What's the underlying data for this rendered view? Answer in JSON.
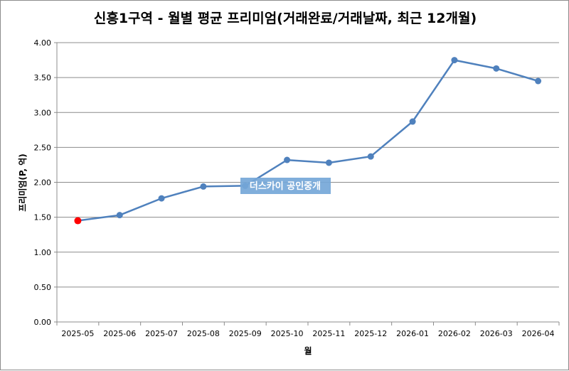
{
  "chart_data": {
    "type": "line",
    "title": "신흥1구역 - 월별 평균 프리미엄(거래완료/거래날짜, 최근 12개월)",
    "xlabel": "월",
    "ylabel": "프리미엄(P, 억)",
    "categories": [
      "2025-05",
      "2025-06",
      "2025-07",
      "2025-08",
      "2025-09",
      "2025-10",
      "2025-11",
      "2025-12",
      "2026-01",
      "2026-02",
      "2026-03",
      "2026-04"
    ],
    "series": [
      {
        "values": [
          1.45,
          1.53,
          1.77,
          1.94,
          1.95,
          2.32,
          2.28,
          2.37,
          2.87,
          3.75,
          3.63,
          3.45
        ]
      }
    ],
    "ylim": [
      0,
      4
    ],
    "yticks": [
      "0.00",
      "0.50",
      "1.00",
      "1.50",
      "2.00",
      "2.50",
      "3.00",
      "3.50",
      "4.00"
    ],
    "grid": true,
    "colors": {
      "line": "#4f81bd",
      "highlight_point": "#ff0000",
      "grid": "#8c8c8c"
    },
    "highlighted_index": 0
  },
  "watermark": {
    "text": "더스카이 공인중개",
    "color": "#75a7d8"
  }
}
